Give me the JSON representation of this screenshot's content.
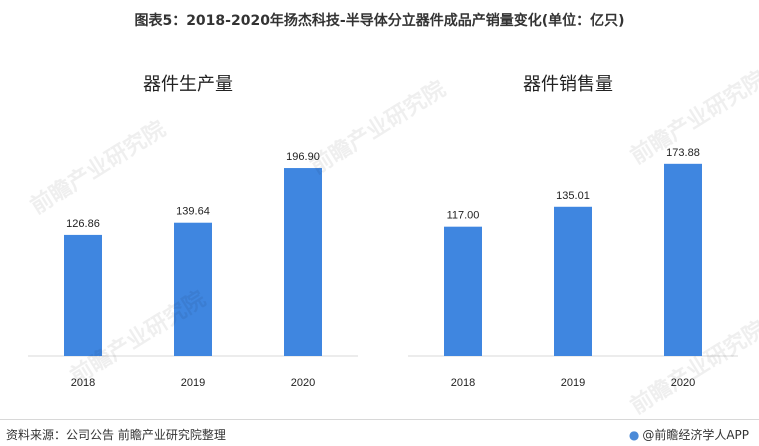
{
  "title": "图表5：2018-2020年扬杰科技-半导体分立器件成品产销量变化(单位：亿只)",
  "footer": {
    "source": "资料来源：公司公告  前瞻产业研究院整理",
    "brand": "@前瞻经济学人APP"
  },
  "watermark": "前瞻产业研究院",
  "colors": {
    "bar": "#3f86e0",
    "axis": "#d9d9d9"
  },
  "chart_data": [
    {
      "type": "bar",
      "title": "器件生产量",
      "categories": [
        "2018",
        "2019",
        "2020"
      ],
      "values": [
        126.86,
        139.64,
        196.9
      ],
      "labels": [
        "126.86",
        "139.64",
        "196.90"
      ],
      "ylim": [
        0,
        220
      ],
      "grid": false
    },
    {
      "type": "bar",
      "title": "器件销售量",
      "categories": [
        "2018",
        "2019",
        "2020"
      ],
      "values": [
        117.0,
        135.01,
        173.88
      ],
      "labels": [
        "117.00",
        "135.01",
        "173.88"
      ],
      "ylim": [
        0,
        190
      ],
      "grid": false
    }
  ]
}
